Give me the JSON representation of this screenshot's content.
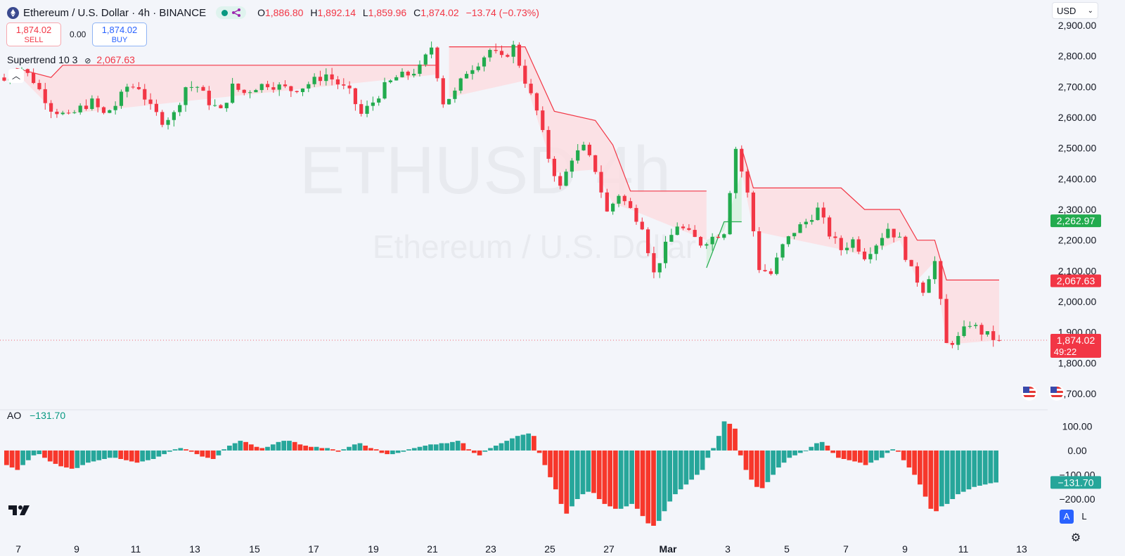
{
  "header": {
    "symbol_title": "Ethereum / U.S. Dollar · 4h · BINANCE",
    "ohlc": {
      "o_label": "O",
      "o": "1,886.80",
      "h_label": "H",
      "h": "1,892.14",
      "l_label": "L",
      "l": "1,859.96",
      "c_label": "C",
      "c": "1,874.02",
      "change": "−13.74 (−0.73%)"
    },
    "currency": "USD"
  },
  "trade": {
    "sell_price": "1,874.02",
    "sell_label": "SELL",
    "spread": "0.00",
    "buy_price": "1,874.02",
    "buy_label": "BUY"
  },
  "indicators": {
    "supertrend_label": "Supertrend 10 3",
    "supertrend_value": "2,067.63",
    "ao_label": "AO",
    "ao_value": "−131.70"
  },
  "watermark": {
    "line1": "ETHUSD 4h",
    "line2": "Ethereum / U.S. Dollar"
  },
  "toolbar": {
    "auto": "A",
    "log": "L"
  },
  "colors": {
    "up": "#089981",
    "down": "#f23645",
    "candle_up": "#22ab4e",
    "ao_up": "#26a69a",
    "ao_down": "#f7372b",
    "supertrend_fill": "#fbdde1",
    "accent": "#2962ff"
  },
  "chart_data": [
    {
      "type": "candlestick",
      "symbol": "ETHUSD",
      "interval": "4h",
      "x_ticks": [
        "7",
        "9",
        "11",
        "13",
        "15",
        "17",
        "19",
        "21",
        "23",
        "25",
        "27",
        "Mar",
        "3",
        "5",
        "7",
        "9",
        "11",
        "13"
      ],
      "ylim": [
        1650,
        2930
      ],
      "y_ticks": [
        "1,700.00",
        "1,800.00",
        "1,900.00",
        "2,000.00",
        "2,100.00",
        "2,200.00",
        "2,300.00",
        "2,400.00",
        "2,500.00",
        "2,600.00",
        "2,700.00",
        "2,800.00",
        "2,900.00"
      ],
      "price_tags": [
        {
          "value": 2262.97,
          "text": "2,262.97",
          "color": "#22ab4e"
        },
        {
          "value": 2067.63,
          "text": "2,067.63",
          "color": "#f23645"
        },
        {
          "value": 1874.02,
          "text": "1,874.02",
          "sub": "49:22",
          "color": "#f23645"
        }
      ],
      "close_path": [
        [
          0,
          2720
        ],
        [
          3,
          2760
        ],
        [
          5,
          2720
        ],
        [
          6,
          2690
        ],
        [
          8,
          2630
        ],
        [
          11,
          2600
        ],
        [
          13,
          2630
        ],
        [
          15,
          2650
        ],
        [
          17,
          2610
        ],
        [
          19,
          2640
        ],
        [
          21,
          2700
        ],
        [
          23,
          2700
        ],
        [
          25,
          2630
        ],
        [
          27,
          2590
        ],
        [
          29,
          2610
        ],
        [
          31,
          2700
        ],
        [
          33,
          2700
        ],
        [
          35,
          2650
        ],
        [
          37,
          2620
        ],
        [
          39,
          2700
        ],
        [
          41,
          2680
        ],
        [
          43,
          2700
        ],
        [
          45,
          2710
        ],
        [
          47,
          2700
        ],
        [
          49,
          2690
        ],
        [
          51,
          2700
        ],
        [
          53,
          2720
        ],
        [
          55,
          2740
        ],
        [
          57,
          2710
        ],
        [
          59,
          2680
        ],
        [
          61,
          2610
        ],
        [
          63,
          2650
        ],
        [
          65,
          2700
        ],
        [
          67,
          2730
        ],
        [
          69,
          2740
        ],
        [
          71,
          2760
        ],
        [
          73,
          2830
        ],
        [
          75,
          2650
        ],
        [
          77,
          2680
        ],
        [
          79,
          2750
        ],
        [
          81,
          2780
        ],
        [
          83,
          2820
        ],
        [
          85,
          2790
        ],
        [
          87,
          2830
        ],
        [
          89,
          2720
        ],
        [
          91,
          2620
        ],
        [
          93,
          2470
        ],
        [
          95,
          2370
        ],
        [
          97,
          2470
        ],
        [
          99,
          2500
        ],
        [
          101,
          2430
        ],
        [
          103,
          2290
        ],
        [
          105,
          2350
        ],
        [
          107,
          2300
        ],
        [
          109,
          2250
        ],
        [
          111,
          2090
        ],
        [
          113,
          2180
        ],
        [
          115,
          2250
        ],
        [
          117,
          2220
        ],
        [
          119,
          2190
        ],
        [
          121,
          2210
        ],
        [
          123,
          2230
        ],
        [
          125,
          2500
        ],
        [
          127,
          2350
        ],
        [
          129,
          2110
        ],
        [
          131,
          2090
        ],
        [
          133,
          2180
        ],
        [
          135,
          2230
        ],
        [
          137,
          2260
        ],
        [
          139,
          2300
        ],
        [
          141,
          2220
        ],
        [
          143,
          2170
        ],
        [
          145,
          2200
        ],
        [
          147,
          2150
        ],
        [
          149,
          2190
        ],
        [
          151,
          2240
        ],
        [
          153,
          2200
        ],
        [
          155,
          2100
        ],
        [
          157,
          2040
        ],
        [
          159,
          2130
        ],
        [
          161,
          1860
        ],
        [
          163,
          1880
        ],
        [
          165,
          1930
        ],
        [
          167,
          1900
        ],
        [
          169,
          1880
        ],
        [
          170,
          1874
        ]
      ],
      "supertrend_segments": [
        {
          "trend": "down",
          "points": [
            [
              2,
              2760
            ],
            [
              8,
              2730
            ],
            [
              10,
              2770
            ],
            [
              74,
              2770
            ]
          ]
        },
        {
          "trend": "down",
          "points": [
            [
              76,
              2830
            ],
            [
              89,
              2830
            ],
            [
              94,
              2620
            ],
            [
              101,
              2590
            ],
            [
              104,
              2510
            ],
            [
              107,
              2360
            ],
            [
              120,
              2360
            ]
          ]
        },
        {
          "trend": "up",
          "points": [
            [
              120,
              2110
            ],
            [
              123,
              2260
            ],
            [
              126,
              2260
            ]
          ]
        },
        {
          "trend": "down",
          "points": [
            [
              126,
              2500
            ],
            [
              128,
              2370
            ],
            [
              143,
              2370
            ],
            [
              147,
              2300
            ],
            [
              153,
              2300
            ],
            [
              156,
              2200
            ],
            [
              159,
              2200
            ],
            [
              161,
              2070
            ],
            [
              170,
              2070
            ]
          ]
        }
      ],
      "ao_values": [
        -60,
        -70,
        -80,
        -60,
        -40,
        -20,
        -15,
        -30,
        -45,
        -55,
        -65,
        -70,
        -75,
        -72,
        -60,
        -50,
        -45,
        -40,
        -35,
        -30,
        -30,
        -35,
        -40,
        -45,
        -50,
        -45,
        -40,
        -35,
        -25,
        -15,
        -5,
        5,
        10,
        5,
        -5,
        -15,
        -25,
        -30,
        -35,
        -20,
        5,
        20,
        30,
        40,
        35,
        25,
        15,
        10,
        15,
        25,
        35,
        40,
        40,
        35,
        25,
        20,
        15,
        15,
        10,
        10,
        5,
        -5,
        5,
        15,
        25,
        30,
        20,
        10,
        5,
        -10,
        -15,
        -15,
        -10,
        -5,
        5,
        10,
        15,
        20,
        25,
        25,
        30,
        30,
        35,
        40,
        30,
        5,
        -10,
        -20,
        -5,
        10,
        20,
        30,
        40,
        50,
        60,
        65,
        70,
        60,
        -10,
        -60,
        -110,
        -160,
        -220,
        -260,
        -230,
        -200,
        -180,
        -170,
        -175,
        -200,
        -220,
        -230,
        -240,
        -240,
        -230,
        -220,
        -240,
        -270,
        -300,
        -310,
        -290,
        -250,
        -210,
        -180,
        -160,
        -140,
        -120,
        -100,
        -80,
        -30,
        10,
        60,
        120,
        110,
        90,
        -20,
        -80,
        -120,
        -150,
        -155,
        -130,
        -100,
        -70,
        -50,
        -30,
        -20,
        -10,
        0,
        15,
        30,
        35,
        20,
        -10,
        -30,
        -35,
        -40,
        -45,
        -50,
        -60,
        -50,
        -40,
        -30,
        -10,
        5,
        -5,
        -40,
        -70,
        -100,
        -140,
        -190,
        -240,
        -250,
        -230,
        -220,
        -200,
        -180,
        -170,
        -160,
        -150,
        -145,
        -140,
        -135,
        -131.7
      ],
      "ao_ylim": [
        -310,
        130
      ],
      "ao_ticks": [
        "100.00",
        "0.00",
        "−100.00",
        "−200.00"
      ],
      "ao_tag": {
        "value": -131.7,
        "text": "−131.70"
      }
    }
  ]
}
